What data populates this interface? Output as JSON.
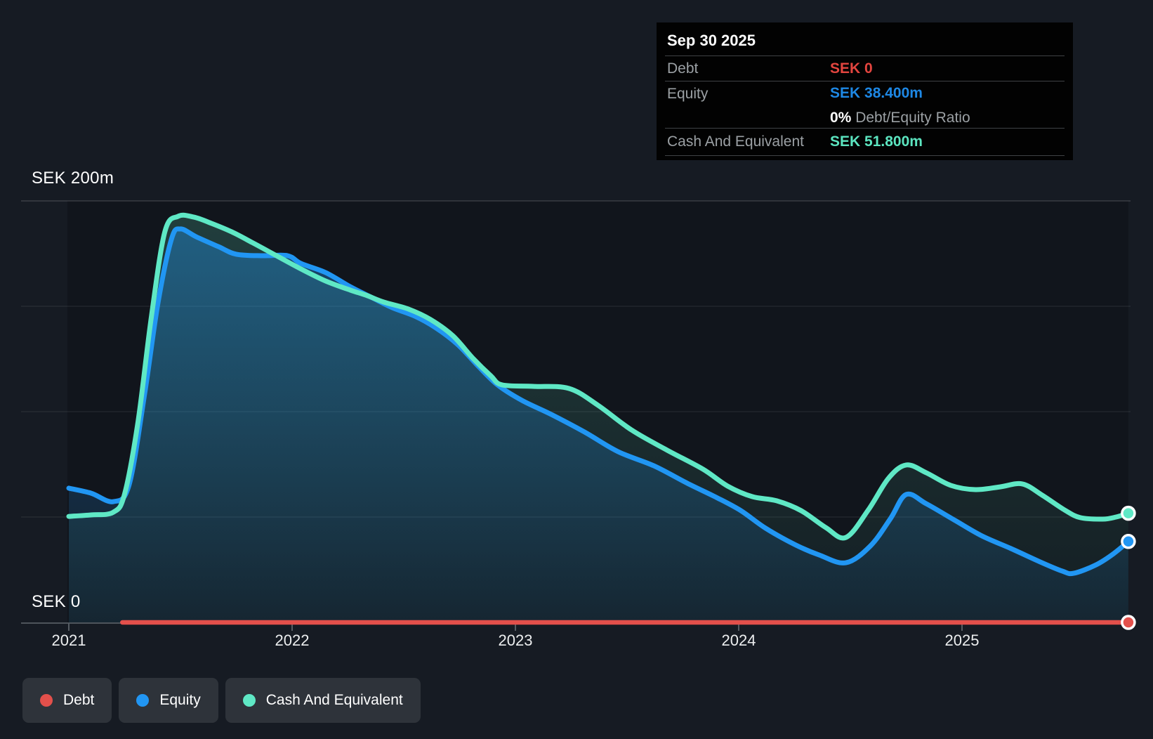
{
  "colors": {
    "debt": "#e3504b",
    "equity": "#2196f3",
    "cash": "#5fe8c5",
    "debt_value_text": "#e3453f",
    "equity_value_text": "#1e88e5",
    "cash_value_text": "#5ce5c0"
  },
  "tooltip": {
    "title": "Sep 30 2025",
    "debt_label": "Debt",
    "debt_value": "SEK 0",
    "equity_label": "Equity",
    "equity_value": "SEK 38.400m",
    "ratio_value": "0%",
    "ratio_label": "Debt/Equity Ratio",
    "cash_label": "Cash And Equivalent",
    "cash_value": "SEK 51.800m"
  },
  "legend": {
    "items": [
      {
        "label": "Debt",
        "color": "#e3504b"
      },
      {
        "label": "Equity",
        "color": "#2196f3"
      },
      {
        "label": "Cash And Equivalent",
        "color": "#5fe8c5"
      }
    ]
  },
  "chart_data": {
    "type": "area",
    "unit": "SEK millions",
    "ylabel_top": "SEK 200m",
    "ylabel_zero": "SEK 0",
    "ylim": [
      0,
      200
    ],
    "gridlines_m": [
      200,
      150,
      100,
      50
    ],
    "x_ticks": [
      {
        "t": 2021,
        "label": "2021"
      },
      {
        "t": 2022,
        "label": "2022"
      },
      {
        "t": 2023,
        "label": "2023"
      },
      {
        "t": 2024,
        "label": "2024"
      },
      {
        "t": 2025,
        "label": "2025"
      }
    ],
    "x_end": 2025.745,
    "series": [
      {
        "name": "Equity",
        "color": "#2196f3",
        "fill_top": "rgba(33,150,243,0.40)",
        "fill_bottom": "rgba(33,150,243,0.07)",
        "end_value": 38.4,
        "points": [
          [
            2021.0,
            63.7
          ],
          [
            2021.1,
            61.3
          ],
          [
            2021.2,
            57.3
          ],
          [
            2021.27,
            65.3
          ],
          [
            2021.34,
            108.7
          ],
          [
            2021.4,
            152.0
          ],
          [
            2021.46,
            182.0
          ],
          [
            2021.5,
            186.7
          ],
          [
            2021.57,
            183.0
          ],
          [
            2021.67,
            178.3
          ],
          [
            2021.75,
            174.7
          ],
          [
            2021.87,
            174.0
          ],
          [
            2021.98,
            174.0
          ],
          [
            2022.04,
            170.3
          ],
          [
            2022.15,
            166.0
          ],
          [
            2022.26,
            159.3
          ],
          [
            2022.36,
            154.0
          ],
          [
            2022.45,
            149.3
          ],
          [
            2022.55,
            145.3
          ],
          [
            2022.64,
            140.0
          ],
          [
            2022.74,
            132.0
          ],
          [
            2022.83,
            122.0
          ],
          [
            2022.92,
            112.7
          ],
          [
            2023.03,
            105.3
          ],
          [
            2023.16,
            98.7
          ],
          [
            2023.31,
            90.3
          ],
          [
            2023.46,
            81.0
          ],
          [
            2023.62,
            74.3
          ],
          [
            2023.77,
            66.0
          ],
          [
            2023.9,
            59.3
          ],
          [
            2024.01,
            53.0
          ],
          [
            2024.12,
            44.7
          ],
          [
            2024.25,
            37.0
          ],
          [
            2024.36,
            32.0
          ],
          [
            2024.48,
            28.3
          ],
          [
            2024.59,
            36.3
          ],
          [
            2024.68,
            49.3
          ],
          [
            2024.75,
            60.7
          ],
          [
            2024.84,
            56.3
          ],
          [
            2024.97,
            48.3
          ],
          [
            2025.09,
            41.0
          ],
          [
            2025.22,
            35.0
          ],
          [
            2025.35,
            28.7
          ],
          [
            2025.45,
            24.3
          ],
          [
            2025.5,
            23.3
          ],
          [
            2025.6,
            27.3
          ],
          [
            2025.68,
            32.7
          ],
          [
            2025.745,
            38.4
          ]
        ]
      },
      {
        "name": "Cash And Equivalent",
        "color": "#5fe8c5",
        "fill_top": "rgba(100,232,198,0.20)",
        "fill_bottom": "rgba(100,232,198,0.04)",
        "end_value": 51.8,
        "points": [
          [
            2021.0,
            50.3
          ],
          [
            2021.1,
            51.0
          ],
          [
            2021.2,
            52.3
          ],
          [
            2021.25,
            61.0
          ],
          [
            2021.31,
            95.3
          ],
          [
            2021.37,
            145.3
          ],
          [
            2021.43,
            185.3
          ],
          [
            2021.49,
            192.7
          ],
          [
            2021.56,
            192.3
          ],
          [
            2021.64,
            189.3
          ],
          [
            2021.73,
            185.3
          ],
          [
            2021.82,
            180.3
          ],
          [
            2021.93,
            174.0
          ],
          [
            2022.04,
            167.7
          ],
          [
            2022.15,
            162.0
          ],
          [
            2022.26,
            157.7
          ],
          [
            2022.33,
            155.3
          ],
          [
            2022.41,
            152.0
          ],
          [
            2022.52,
            148.7
          ],
          [
            2022.62,
            143.7
          ],
          [
            2022.72,
            136.0
          ],
          [
            2022.81,
            125.3
          ],
          [
            2022.89,
            117.0
          ],
          [
            2022.94,
            112.7
          ],
          [
            2023.08,
            112.0
          ],
          [
            2023.24,
            111.0
          ],
          [
            2023.37,
            103.0
          ],
          [
            2023.52,
            91.3
          ],
          [
            2023.68,
            81.7
          ],
          [
            2023.84,
            72.7
          ],
          [
            2023.95,
            64.7
          ],
          [
            2024.06,
            59.7
          ],
          [
            2024.17,
            57.7
          ],
          [
            2024.28,
            53.0
          ],
          [
            2024.39,
            45.0
          ],
          [
            2024.48,
            40.3
          ],
          [
            2024.58,
            53.3
          ],
          [
            2024.67,
            68.3
          ],
          [
            2024.75,
            74.7
          ],
          [
            2024.84,
            71.0
          ],
          [
            2024.95,
            65.0
          ],
          [
            2025.06,
            63.0
          ],
          [
            2025.17,
            64.3
          ],
          [
            2025.27,
            65.7
          ],
          [
            2025.36,
            60.3
          ],
          [
            2025.46,
            53.3
          ],
          [
            2025.53,
            49.7
          ],
          [
            2025.63,
            49.0
          ],
          [
            2025.69,
            50.0
          ],
          [
            2025.745,
            51.8
          ]
        ]
      },
      {
        "name": "Debt",
        "color": "#e3504b",
        "end_value": 0,
        "points": [
          [
            2021.24,
            0
          ],
          [
            2025.745,
            0
          ]
        ]
      }
    ]
  }
}
